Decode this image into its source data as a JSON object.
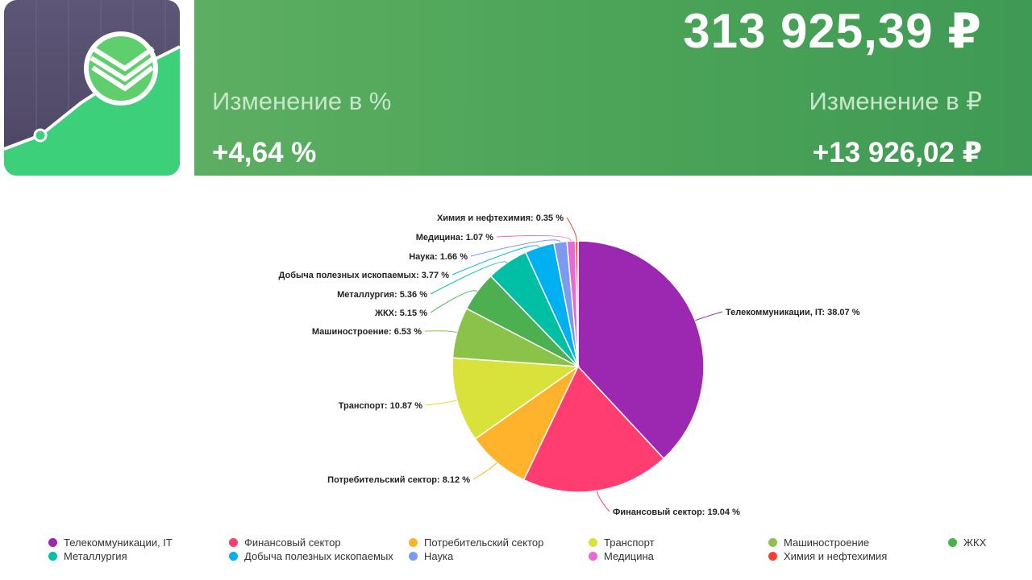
{
  "summary": {
    "total": "313 925,39 ₽",
    "change_pct_label": "Изменение в %",
    "change_pct_value": "+4,64 %",
    "change_rub_label": "Изменение в ₽",
    "change_rub_value": "+13 926,02 ₽"
  },
  "colors": {
    "header_green": "#4aa357",
    "icon_bg": "#5e5676",
    "icon_green": "#3dd07a"
  },
  "app_icon": {
    "name": "sber-invest-icon"
  },
  "chart_data": {
    "type": "pie",
    "title": "",
    "categories": [
      "Телекоммуникации, IT",
      "Финансовый сектор",
      "Потребительский сектор",
      "Транспорт",
      "Машиностроение",
      "ЖКХ",
      "Металлургия",
      "Добыча полезных ископаемых",
      "Наука",
      "Медицина",
      "Химия и нефтехимия"
    ],
    "values": [
      38.07,
      19.04,
      8.12,
      10.87,
      6.53,
      5.15,
      5.36,
      3.77,
      1.66,
      1.07,
      0.35
    ],
    "labels": [
      "Телекоммуникации, IT: 38.07 %",
      "Финансовый сектор: 19.04 %",
      "Потребительский сектор: 8.12 %",
      "Транспорт: 10.87 %",
      "Машиностроение: 6.53 %",
      "ЖКХ: 5.15 %",
      "Металлургия: 5.36 %",
      "Добыча полезных ископаемых: 3.77 %",
      "Наука: 1.66 %",
      "Медицина: 1.07 %",
      "Химия и нефтехимия: 0.35 %"
    ],
    "colors": [
      "#9c27b0",
      "#ff3d71",
      "#ffb22b",
      "#d8e23a",
      "#8bc34a",
      "#4caf50",
      "#00bfa5",
      "#00b0f0",
      "#7c9bef",
      "#e66ad1",
      "#f44336"
    ],
    "legend_position": "bottom"
  }
}
